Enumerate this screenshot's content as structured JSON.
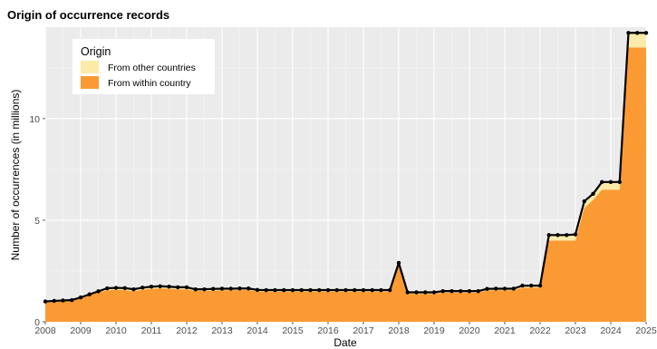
{
  "chart_data": {
    "type": "area",
    "title": "Origin of occurrence records",
    "xlabel": "Date",
    "ylabel": "Number of occurrences (in millions)",
    "xlim": [
      2008,
      2025
    ],
    "ylim": [
      0,
      14.5
    ],
    "x_ticks": [
      "2008",
      "2009",
      "2010",
      "2011",
      "2012",
      "2013",
      "2014",
      "2015",
      "2016",
      "2017",
      "2018",
      "2019",
      "2020",
      "2021",
      "2022",
      "2023",
      "2024",
      "2025"
    ],
    "x_tick_values": [
      2008,
      2009,
      2010,
      2011,
      2012,
      2013,
      2014,
      2015,
      2016,
      2017,
      2018,
      2019,
      2020,
      2021,
      2022,
      2023,
      2024,
      2025
    ],
    "y_ticks": [
      "0",
      "5",
      "10"
    ],
    "y_tick_values": [
      0,
      5,
      10
    ],
    "grid": true,
    "legend": {
      "title": "Origin",
      "position": "top-left",
      "entries": [
        {
          "label": "From other countries",
          "color": "#fbeaa8"
        },
        {
          "label": "From within country",
          "color": "#fb9a32"
        }
      ]
    },
    "x": [
      2008.0,
      2008.25,
      2008.5,
      2008.75,
      2009.0,
      2009.25,
      2009.5,
      2009.75,
      2010.0,
      2010.25,
      2010.5,
      2010.75,
      2011.0,
      2011.25,
      2011.5,
      2011.75,
      2012.0,
      2012.25,
      2012.5,
      2012.75,
      2013.0,
      2013.25,
      2013.5,
      2013.75,
      2014.0,
      2014.25,
      2014.5,
      2014.75,
      2015.0,
      2015.25,
      2015.5,
      2015.75,
      2016.0,
      2016.25,
      2016.5,
      2016.75,
      2017.0,
      2017.25,
      2017.5,
      2017.75,
      2018.0,
      2018.25,
      2018.5,
      2018.75,
      2019.0,
      2019.25,
      2019.5,
      2019.75,
      2020.0,
      2020.25,
      2020.5,
      2020.75,
      2021.0,
      2021.25,
      2021.5,
      2021.75,
      2022.0,
      2022.25,
      2022.5,
      2022.75,
      2023.0,
      2023.25,
      2023.5,
      2023.75,
      2024.0,
      2024.25,
      2024.5,
      2024.75,
      2025.0
    ],
    "series": [
      {
        "name": "From within country",
        "color": "#fb9a32",
        "values": [
          0.95,
          0.98,
          1.0,
          1.02,
          1.15,
          1.3,
          1.45,
          1.55,
          1.57,
          1.56,
          1.5,
          1.58,
          1.63,
          1.65,
          1.63,
          1.6,
          1.6,
          1.52,
          1.52,
          1.54,
          1.55,
          1.55,
          1.56,
          1.56,
          1.5,
          1.49,
          1.49,
          1.49,
          1.49,
          1.49,
          1.49,
          1.49,
          1.49,
          1.49,
          1.49,
          1.49,
          1.49,
          1.49,
          1.49,
          1.49,
          2.75,
          1.38,
          1.38,
          1.38,
          1.38,
          1.44,
          1.44,
          1.44,
          1.44,
          1.44,
          1.54,
          1.55,
          1.55,
          1.55,
          1.68,
          1.68,
          1.68,
          4.0,
          4.0,
          4.0,
          4.0,
          5.6,
          6.0,
          6.5,
          6.5,
          6.5,
          13.5,
          13.5,
          13.5
        ]
      },
      {
        "name": "From other countries",
        "color": "#fbeaa8",
        "values": [
          0.05,
          0.05,
          0.05,
          0.05,
          0.05,
          0.05,
          0.05,
          0.1,
          0.1,
          0.1,
          0.1,
          0.1,
          0.1,
          0.1,
          0.1,
          0.1,
          0.1,
          0.08,
          0.08,
          0.08,
          0.08,
          0.08,
          0.08,
          0.08,
          0.07,
          0.07,
          0.07,
          0.07,
          0.07,
          0.07,
          0.07,
          0.07,
          0.07,
          0.07,
          0.07,
          0.07,
          0.07,
          0.07,
          0.07,
          0.07,
          0.15,
          0.07,
          0.07,
          0.07,
          0.07,
          0.07,
          0.07,
          0.07,
          0.07,
          0.07,
          0.08,
          0.08,
          0.08,
          0.08,
          0.1,
          0.1,
          0.1,
          0.27,
          0.27,
          0.27,
          0.3,
          0.33,
          0.3,
          0.38,
          0.38,
          0.38,
          0.72,
          0.72,
          0.72
        ]
      }
    ],
    "total_line_color": "#000000"
  }
}
